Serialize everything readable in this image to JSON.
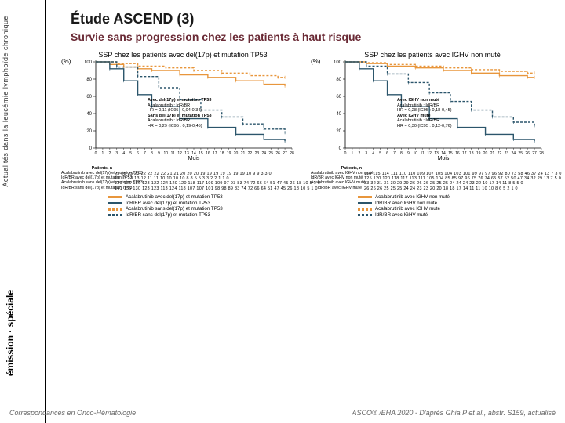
{
  "sidebar": {
    "tagline": "Actualités dans la leucémie lymphoïde chronique",
    "brand": "émission · spéciale"
  },
  "colors": {
    "line1_solid": "#e8963c",
    "line2_solid": "#2b556b",
    "line3_dash": "#e8963c",
    "line4_dash": "#2b556b",
    "axis": "#000000",
    "grid": "#bfbfbf",
    "subtitle": "#6a2a35",
    "censor": "#333333"
  },
  "title": "Étude ASCEND (3)",
  "subtitle": "Survie sans progression chez les patients à haut risque",
  "left_chart": {
    "title": "SSP chez les patients avec del(17p) et mutation TP53",
    "ylabel": "(%)",
    "xlabel": "Mois",
    "ylim": [
      0,
      100
    ],
    "ytick_step": 20,
    "xlim": [
      0,
      28
    ],
    "xtick_step": 1,
    "inset_lines": [
      "Avec del(17p) et mutation TP53",
      "Acalabrutinib : IdR/BR",
      "HR = 0,11 (IC95 : 0,04-0,34)",
      "Sans del(17p) et mutation TP53",
      "Acalabrutinib : IdR/BR",
      "HR = 0,29 (IC95 : 0,19-0,45)"
    ],
    "series": [
      {
        "name": "acala-del",
        "style": "solid",
        "color": "#e8963c",
        "points": [
          [
            0,
            100
          ],
          [
            2,
            97
          ],
          [
            4,
            94
          ],
          [
            6,
            92
          ],
          [
            8,
            90
          ],
          [
            12,
            85
          ],
          [
            16,
            82
          ],
          [
            20,
            78
          ],
          [
            24,
            74
          ],
          [
            27,
            72
          ]
        ]
      },
      {
        "name": "idr-del",
        "style": "solid",
        "color": "#2b556b",
        "points": [
          [
            0,
            100
          ],
          [
            2,
            92
          ],
          [
            4,
            78
          ],
          [
            6,
            62
          ],
          [
            8,
            48
          ],
          [
            12,
            34
          ],
          [
            16,
            24
          ],
          [
            20,
            16
          ],
          [
            24,
            10
          ],
          [
            27,
            8
          ]
        ]
      },
      {
        "name": "acala-nodel",
        "style": "dash",
        "color": "#e8963c",
        "points": [
          [
            0,
            100
          ],
          [
            3,
            98
          ],
          [
            6,
            95
          ],
          [
            10,
            93
          ],
          [
            14,
            90
          ],
          [
            18,
            87
          ],
          [
            22,
            84
          ],
          [
            26,
            82
          ],
          [
            27,
            82
          ]
        ]
      },
      {
        "name": "idr-nodel",
        "style": "dash",
        "color": "#2b556b",
        "points": [
          [
            0,
            100
          ],
          [
            3,
            94
          ],
          [
            6,
            83
          ],
          [
            9,
            70
          ],
          [
            12,
            56
          ],
          [
            15,
            44
          ],
          [
            18,
            36
          ],
          [
            21,
            28
          ],
          [
            24,
            22
          ],
          [
            27,
            18
          ]
        ]
      }
    ],
    "risk_head": "Patients, n",
    "risk": [
      {
        "label": "Acalabrutinib avec del(17p) et mutation TP53",
        "vals": "25 25 25 23 22 22 22 22 21 21 20 20 20 19 19 19 19 19 19 19 10 9 9 3 3 0"
      },
      {
        "label": "IdR/BR avec del(17p) et mutation TP53",
        "vals": "13 13 13 13 12 11 11 10 10 10 10 8 8 5 5 3 3 2 2 1 1 0"
      },
      {
        "label": "Acalabrutinib sans del(17p) et mutation TP53",
        "vals": "130 126 126 123 122 124 120 120 118 117 109 109 97 93 83 74 72 66 64 51 47 45 26 18 10 5 1 0"
      },
      {
        "label": "IdR/BR sans del(17p) et mutation TP53",
        "vals": "141 136 130 123 123 113 124 118 107 107 101 98 98 89 83 74 72 66 64 51 47 45 26 18 10 5 1 0"
      }
    ],
    "legend": [
      {
        "style": "solid",
        "color": "#e8963c",
        "label": "Acalabrutinib avec del(17p) et mutation TP53"
      },
      {
        "style": "solid",
        "color": "#2b556b",
        "label": "IdR/BR avec del(17p) et mutation TP53"
      },
      {
        "style": "dash",
        "color": "#e8963c",
        "label": "Acalabrutinib sans del(17p) et mutation TP53"
      },
      {
        "style": "dash",
        "color": "#2b556b",
        "label": "IdR/BR sans del(17p) et mutation TP53"
      }
    ]
  },
  "right_chart": {
    "title": "SSP chez les patients avec IGHV non muté",
    "ylabel": "(%)",
    "xlabel": "Mois",
    "ylim": [
      0,
      100
    ],
    "ytick_step": 20,
    "xlim": [
      0,
      28
    ],
    "xtick_step": 1,
    "inset_lines": [
      "Avec IGHV non muté",
      "Acalabrutinib : IdR/BR",
      "HR = 0,28 (IC95 : 0,18-0,45)",
      "Avec IGHV muté",
      "Acalabrutinib : IdR/BR",
      "HR = 0,30 (IC95 : 0,12-0,76)"
    ],
    "series": [
      {
        "name": "acala-nonmute",
        "style": "solid",
        "color": "#e8963c",
        "points": [
          [
            0,
            100
          ],
          [
            3,
            98
          ],
          [
            6,
            95
          ],
          [
            10,
            93
          ],
          [
            14,
            90
          ],
          [
            18,
            87
          ],
          [
            22,
            84
          ],
          [
            26,
            82
          ],
          [
            27,
            82
          ]
        ]
      },
      {
        "name": "idr-nonmute",
        "style": "solid",
        "color": "#2b556b",
        "points": [
          [
            0,
            100
          ],
          [
            2,
            92
          ],
          [
            4,
            78
          ],
          [
            6,
            62
          ],
          [
            8,
            48
          ],
          [
            12,
            34
          ],
          [
            16,
            24
          ],
          [
            20,
            16
          ],
          [
            24,
            10
          ],
          [
            27,
            8
          ]
        ]
      },
      {
        "name": "acala-mute",
        "style": "dash",
        "color": "#e8963c",
        "points": [
          [
            0,
            100
          ],
          [
            3,
            99
          ],
          [
            6,
            97
          ],
          [
            10,
            95
          ],
          [
            14,
            93
          ],
          [
            18,
            91
          ],
          [
            22,
            89
          ],
          [
            26,
            87
          ],
          [
            27,
            87
          ]
        ]
      },
      {
        "name": "idr-mute",
        "style": "dash",
        "color": "#2b556b",
        "points": [
          [
            0,
            100
          ],
          [
            3,
            95
          ],
          [
            6,
            86
          ],
          [
            9,
            76
          ],
          [
            12,
            64
          ],
          [
            15,
            54
          ],
          [
            18,
            44
          ],
          [
            21,
            36
          ],
          [
            24,
            30
          ],
          [
            27,
            26
          ]
        ]
      }
    ],
    "risk_head": "Patients, n",
    "risk": [
      {
        "label": "Acalabrutinib avec IGHV non muté",
        "vals": "118 115 114 111 110 110 109 107 105 104 103 101 99 97 97 96 92 80 73 58 46 37 24 13 7 3 0"
      },
      {
        "label": "IdR/BR avec IGHV non muté",
        "vals": "125 120 120 118 117 113 111 105 104 85 85 97 96 75 76 74 65 57 52 50 47 34 32 29 13 7 5 0"
      },
      {
        "label": "Acalabrutinib avec IGHV muté",
        "vals": "33 32 31 31 30 29 29 26 26 26 25 25 25 24 24 24 23 22 19 17 14 11 8 5 5 0"
      },
      {
        "label": "IdR/BR avec IGHV muté",
        "vals": "26 26 26 25 25 25 24 24 23 23 20 20 18 18 17 14 11 11 10 10 8 6 5 2 1 0"
      }
    ],
    "legend": [
      {
        "style": "solid",
        "color": "#e8963c",
        "label": "Acalabrutinib avec IGHV non muté"
      },
      {
        "style": "solid",
        "color": "#2b556b",
        "label": "IdR/BR avec IGHV non muté"
      },
      {
        "style": "dash",
        "color": "#e8963c",
        "label": "Acalabrutinib avec IGHV muté"
      },
      {
        "style": "dash",
        "color": "#2b556b",
        "label": "IdR/BR avec IGHV muté"
      }
    ]
  },
  "footer": {
    "left": "Correspondances en Onco-Hématologie",
    "right": "ASCO® /EHA 2020 - D'après Ghia P et al., abstr. S159, actualisé"
  }
}
